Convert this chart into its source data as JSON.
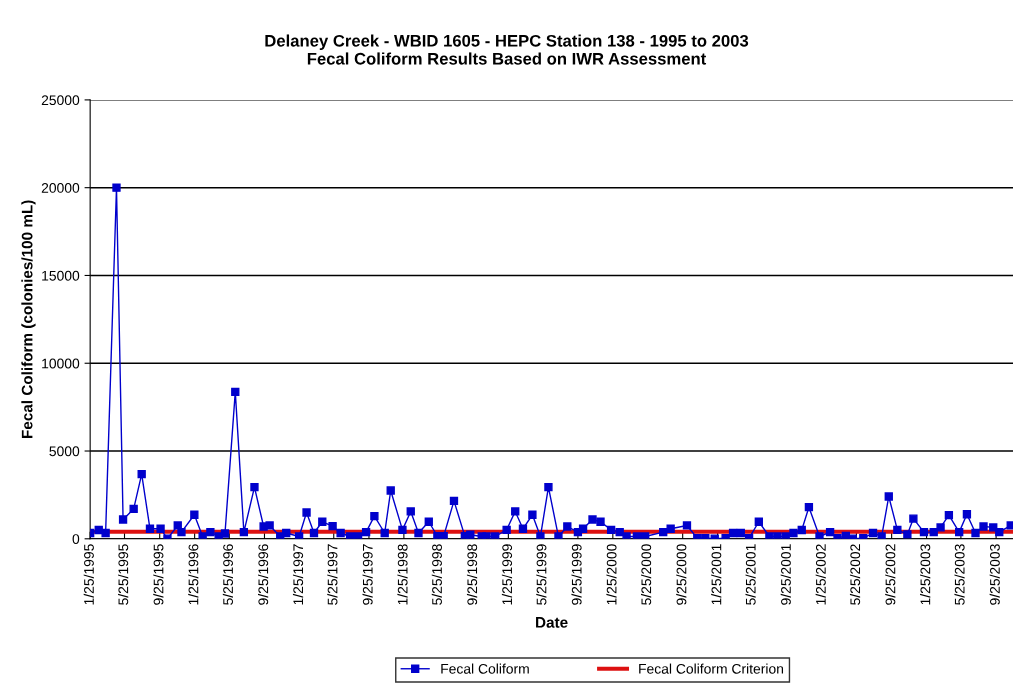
{
  "chart_data": {
    "type": "line",
    "title": "Delaney Creek - WBID 1605 - HEPC Station 138 - 1995 to 2003\nFecal Coliform Results Based on IWR Assessment",
    "xlabel": "Date",
    "ylabel": "Fecal Coliform (colonies/100 mL)",
    "x": [
      "1995-01-25",
      "1995-02-24",
      "1995-03-20",
      "1995-04-27",
      "1995-05-20",
      "1995-06-26",
      "1995-07-24",
      "1995-08-22",
      "1995-09-28",
      "1995-10-22",
      "1995-11-27",
      "1995-12-10",
      "1996-01-24",
      "1996-02-22",
      "1996-03-20",
      "1996-04-18",
      "1996-05-10",
      "1996-06-15",
      "1996-07-15",
      "1996-08-21",
      "1996-09-22",
      "1996-10-13",
      "1996-11-19",
      "1996-12-10",
      "1997-01-24",
      "1997-02-19",
      "1997-03-17",
      "1997-04-15",
      "1997-05-21",
      "1997-06-18",
      "1997-07-21",
      "1997-08-18",
      "1997-09-15",
      "1997-10-14",
      "1997-11-19",
      "1997-12-10",
      "1998-01-20",
      "1998-02-18",
      "1998-03-17",
      "1998-04-22",
      "1998-05-22",
      "1998-06-13",
      "1998-07-19",
      "1998-08-26",
      "1998-09-14",
      "1998-10-24",
      "1998-11-10",
      "1998-12-10",
      "1999-01-19",
      "1999-02-18",
      "1999-03-17",
      "1999-04-19",
      "1999-05-17",
      "1999-06-14",
      "1999-07-19",
      "1999-08-19",
      "1999-09-25",
      "1999-10-13",
      "1999-11-15",
      "1999-12-13",
      "2000-01-19",
      "2000-02-18",
      "2000-03-13",
      "2000-04-18",
      "2000-05-17",
      "2000-07-19",
      "2000-08-14",
      "2000-10-10",
      "2000-11-15",
      "2000-12-13",
      "2001-01-15",
      "2001-02-22",
      "2001-03-20",
      "2001-04-16",
      "2001-05-15",
      "2001-06-18",
      "2001-07-25",
      "2001-08-22",
      "2001-09-20",
      "2001-10-17",
      "2001-11-15",
      "2001-12-10",
      "2002-01-16",
      "2002-02-22",
      "2002-03-20",
      "2002-04-18",
      "2002-05-12",
      "2002-06-18",
      "2002-07-22",
      "2002-08-21",
      "2002-09-15",
      "2002-10-15",
      "2002-11-19",
      "2002-12-10",
      "2003-01-16",
      "2003-02-19",
      "2003-03-15",
      "2003-04-13",
      "2003-05-19",
      "2003-06-15",
      "2003-07-15",
      "2003-08-12",
      "2003-09-15",
      "2003-10-06",
      "2003-11-15"
    ],
    "series": [
      {
        "name": "Fecal Coliform",
        "color": "#0000cc",
        "values": [
          330,
          500,
          330,
          20000,
          1100,
          1700,
          3680,
          570,
          570,
          10,
          760,
          380,
          1370,
          130,
          380,
          130,
          300,
          8370,
          380,
          2940,
          700,
          760,
          130,
          330,
          130,
          1500,
          330,
          970,
          720,
          330,
          130,
          130,
          380,
          1290,
          330,
          2750,
          510,
          1560,
          330,
          970,
          150,
          150,
          2160,
          150,
          230,
          130,
          130,
          130,
          510,
          1560,
          570,
          1370,
          130,
          2940,
          130,
          700,
          380,
          570,
          1100,
          970,
          510,
          380,
          130,
          130,
          130,
          380,
          570,
          760,
          40,
          40,
          10,
          40,
          330,
          330,
          40,
          970,
          130,
          130,
          130,
          330,
          500,
          1800,
          130,
          380,
          40,
          170,
          10,
          40,
          330,
          130,
          2410,
          510,
          250,
          1150,
          380,
          380,
          650,
          1350,
          380,
          1400,
          330,
          700,
          650,
          380,
          760
        ]
      }
    ],
    "ref_lines": [
      {
        "axis": "y",
        "value": 400,
        "label": "Fecal Coliform Criterion",
        "color": "#dd1111",
        "line_style": "solid"
      }
    ],
    "xlim": [
      "1995-01-25",
      "2003-11-23"
    ],
    "xticks": [
      {
        "value": "1995-01-25",
        "label": "1/25/1995"
      },
      {
        "value": "1995-05-25",
        "label": "5/25/1995"
      },
      {
        "value": "1995-09-25",
        "label": "9/25/1995"
      },
      {
        "value": "1996-01-25",
        "label": "1/25/1996"
      },
      {
        "value": "1996-05-25",
        "label": "5/25/1996"
      },
      {
        "value": "1996-09-25",
        "label": "9/25/1996"
      },
      {
        "value": "1997-01-25",
        "label": "1/25/1997"
      },
      {
        "value": "1997-05-25",
        "label": "5/25/1997"
      },
      {
        "value": "1997-09-25",
        "label": "9/25/1997"
      },
      {
        "value": "1998-01-25",
        "label": "1/25/1998"
      },
      {
        "value": "1998-05-25",
        "label": "5/25/1998"
      },
      {
        "value": "1998-09-25",
        "label": "9/25/1998"
      },
      {
        "value": "1999-01-25",
        "label": "1/25/1999"
      },
      {
        "value": "1999-05-25",
        "label": "5/25/1999"
      },
      {
        "value": "1999-09-25",
        "label": "9/25/1999"
      },
      {
        "value": "2000-01-25",
        "label": "1/25/2000"
      },
      {
        "value": "2000-05-25",
        "label": "5/25/2000"
      },
      {
        "value": "2000-09-25",
        "label": "9/25/2000"
      },
      {
        "value": "2001-01-25",
        "label": "1/25/2001"
      },
      {
        "value": "2001-05-25",
        "label": "5/25/2001"
      },
      {
        "value": "2001-09-25",
        "label": "9/25/2001"
      },
      {
        "value": "2002-01-25",
        "label": "1/25/2002"
      },
      {
        "value": "2002-05-25",
        "label": "5/25/2002"
      },
      {
        "value": "2002-09-25",
        "label": "9/25/2002"
      },
      {
        "value": "2003-01-25",
        "label": "1/25/2003"
      },
      {
        "value": "2003-05-25",
        "label": "5/25/2003"
      },
      {
        "value": "2003-09-25",
        "label": "9/25/2003"
      }
    ],
    "ylim": [
      0,
      25000
    ],
    "yticks": [
      0,
      5000,
      10000,
      15000,
      20000,
      25000
    ],
    "grid": "y",
    "legend": "bottom",
    "marker": "square",
    "line_style": "solid"
  }
}
